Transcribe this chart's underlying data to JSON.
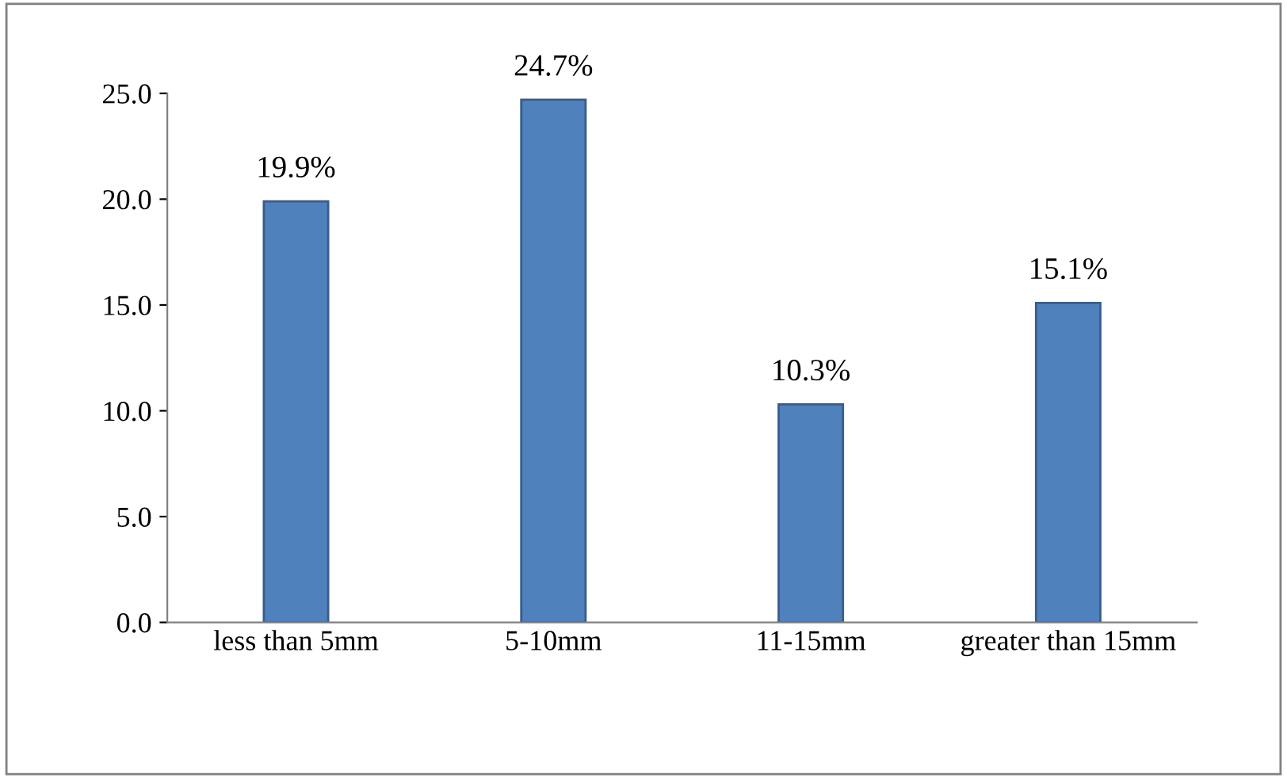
{
  "chart_data": {
    "type": "bar",
    "categories": [
      "less than 5mm",
      "5-10mm",
      "11-15mm",
      "greater than 15mm"
    ],
    "values": [
      19.9,
      24.7,
      10.3,
      15.1
    ],
    "value_labels": [
      "19.9%",
      "24.7%",
      "10.3%",
      "15.1%"
    ],
    "color": "#4f81bd",
    "ylim": [
      0,
      25
    ],
    "yticks": [
      {
        "value": 0,
        "label": "0.0"
      },
      {
        "value": 5,
        "label": "5.0"
      },
      {
        "value": 10,
        "label": "10.0"
      },
      {
        "value": 15,
        "label": "15.0"
      },
      {
        "value": 20,
        "label": "20.0"
      },
      {
        "value": 25,
        "label": "25.0"
      }
    ],
    "grid": false,
    "legend": false
  }
}
